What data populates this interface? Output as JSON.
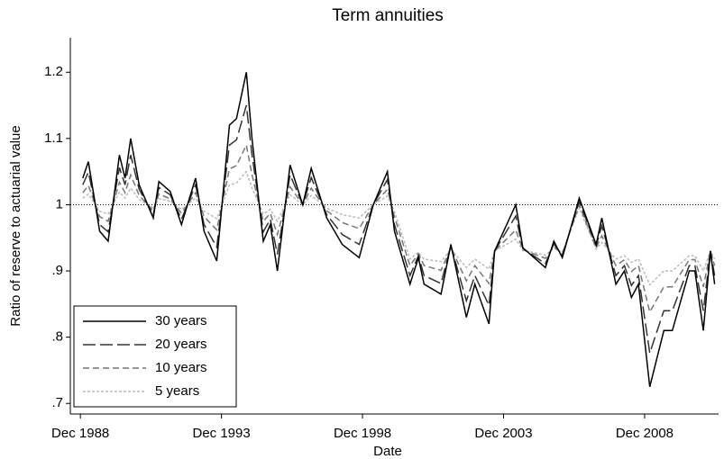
{
  "chart_data": {
    "type": "line",
    "title": "Term annuities",
    "x_label": "Date",
    "y_label": "Ratio of reserve to actuarial value",
    "x": [
      1989.0,
      1989.2,
      1989.6,
      1989.9,
      1990.3,
      1990.5,
      1990.7,
      1991.0,
      1991.5,
      1991.7,
      1992.1,
      1992.5,
      1993.0,
      1993.3,
      1993.75,
      1994.2,
      1994.45,
      1994.8,
      1995.0,
      1995.4,
      1995.65,
      1995.9,
      1996.35,
      1996.8,
      1997.1,
      1997.65,
      1998.2,
      1998.8,
      1999.3,
      1999.8,
      2000.05,
      2000.6,
      2000.9,
      2001.1,
      2001.7,
      2002.05,
      2002.6,
      2002.9,
      2003.4,
      2003.6,
      2004.35,
      2004.6,
      2005.4,
      2005.7,
      2006.0,
      2006.6,
      2007.2,
      2007.4,
      2007.9,
      2008.2,
      2008.45,
      2008.7,
      2009.1,
      2009.6,
      2009.9,
      2010.5,
      2010.7,
      2011.0,
      2011.25,
      2011.4
    ],
    "series": [
      {
        "name": "30 years",
        "color": "#000000",
        "dash": "solid",
        "values": [
          1.04,
          1.065,
          0.96,
          0.945,
          1.075,
          1.04,
          1.1,
          1.03,
          0.98,
          1.035,
          1.02,
          0.97,
          1.04,
          0.96,
          0.915,
          1.12,
          1.13,
          1.2,
          1.1,
          0.945,
          0.97,
          0.9,
          1.06,
          1.0,
          1.055,
          0.98,
          0.94,
          0.92,
          1.0,
          1.05,
          0.96,
          0.88,
          0.92,
          0.88,
          0.865,
          0.94,
          0.83,
          0.88,
          0.82,
          0.93,
          1.0,
          0.935,
          0.905,
          0.945,
          0.92,
          1.01,
          0.94,
          0.98,
          0.88,
          0.9,
          0.86,
          0.88,
          0.725,
          0.81,
          0.81,
          0.9,
          0.9,
          0.81,
          0.93,
          0.88
        ]
      },
      {
        "name": "20 years",
        "color": "#333333",
        "dash": "longdash",
        "values": [
          1.03,
          1.049,
          0.97,
          0.959,
          1.056,
          1.03,
          1.075,
          1.023,
          0.985,
          1.026,
          1.015,
          0.978,
          1.03,
          0.97,
          0.936,
          1.09,
          1.098,
          1.15,
          1.075,
          0.959,
          0.978,
          0.925,
          1.045,
          1.0,
          1.041,
          0.985,
          0.955,
          0.94,
          1.0,
          1.038,
          0.97,
          0.893,
          0.923,
          0.893,
          0.881,
          0.938,
          0.855,
          0.893,
          0.848,
          0.93,
          0.983,
          0.934,
          0.911,
          0.941,
          0.923,
          1.005,
          0.938,
          0.968,
          0.893,
          0.908,
          0.878,
          0.893,
          0.776,
          0.84,
          0.84,
          0.908,
          0.908,
          0.84,
          0.93,
          0.893
        ]
      },
      {
        "name": "10 years",
        "color": "#777777",
        "dash": "dash",
        "values": [
          1.018,
          1.029,
          0.982,
          0.975,
          1.034,
          1.018,
          1.045,
          1.014,
          0.991,
          1.016,
          1.009,
          0.987,
          1.018,
          0.982,
          0.962,
          1.054,
          1.059,
          1.09,
          1.045,
          0.975,
          0.987,
          0.955,
          1.027,
          1.0,
          1.025,
          0.991,
          0.973,
          0.964,
          1.0,
          1.023,
          0.982,
          0.908,
          0.926,
          0.908,
          0.901,
          0.935,
          0.885,
          0.908,
          0.881,
          0.93,
          0.962,
          0.932,
          0.919,
          0.937,
          0.926,
          1.0,
          0.935,
          0.953,
          0.908,
          0.917,
          0.899,
          0.908,
          0.838,
          0.876,
          0.876,
          0.917,
          0.917,
          0.876,
          0.93,
          0.908
        ]
      },
      {
        "name": "5 years",
        "color": "#bbbbbb",
        "dash": "shortdash",
        "values": [
          1.01,
          1.016,
          0.99,
          0.986,
          1.019,
          1.01,
          1.025,
          1.008,
          0.995,
          1.009,
          1.005,
          0.993,
          1.01,
          0.99,
          0.979,
          1.03,
          1.033,
          1.05,
          1.025,
          0.986,
          0.993,
          0.975,
          1.015,
          1.0,
          1.014,
          0.995,
          0.985,
          0.98,
          1.0,
          1.013,
          0.99,
          0.918,
          0.928,
          0.918,
          0.914,
          0.933,
          0.905,
          0.918,
          0.903,
          0.93,
          0.948,
          0.931,
          0.924,
          0.934,
          0.928,
          0.995,
          0.933,
          0.943,
          0.918,
          0.923,
          0.913,
          0.918,
          0.879,
          0.9,
          0.9,
          0.923,
          0.923,
          0.9,
          0.93,
          0.918
        ]
      }
    ],
    "reference_line": 1,
    "xlim": [
      1988.56,
      2011.54
    ],
    "ylim": [
      0.684,
      1.252
    ],
    "xticks": [
      {
        "value": 1988.917,
        "label": "Dec 1988"
      },
      {
        "value": 1993.917,
        "label": "Dec 1993"
      },
      {
        "value": 1998.917,
        "label": "Dec 1998"
      },
      {
        "value": 2003.917,
        "label": "Dec 2003"
      },
      {
        "value": 2008.917,
        "label": "Dec 2008"
      }
    ],
    "yticks": [
      {
        "value": 0.7,
        "label": ".7"
      },
      {
        "value": 0.8,
        "label": ".8"
      },
      {
        "value": 0.9,
        "label": ".9"
      },
      1,
      1.1,
      1.2
    ],
    "legend": "lower-left"
  }
}
